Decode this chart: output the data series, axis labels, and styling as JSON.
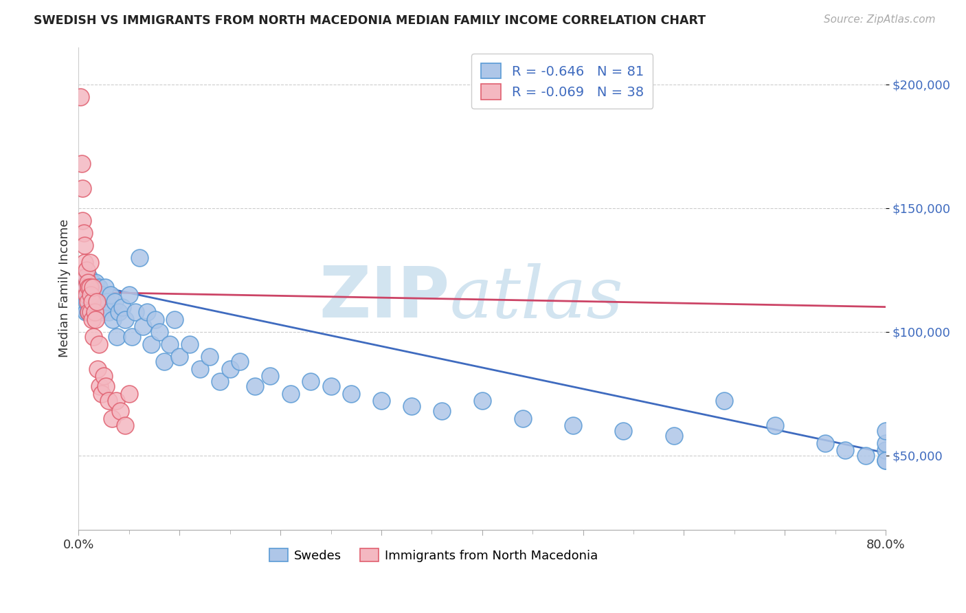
{
  "title": "SWEDISH VS IMMIGRANTS FROM NORTH MACEDONIA MEDIAN FAMILY INCOME CORRELATION CHART",
  "source": "Source: ZipAtlas.com",
  "ylabel": "Median Family Income",
  "xlim": [
    0.0,
    0.8
  ],
  "ylim": [
    20000,
    215000
  ],
  "yticks": [
    50000,
    100000,
    150000,
    200000
  ],
  "ytick_labels": [
    "$50,000",
    "$100,000",
    "$150,000",
    "$200,000"
  ],
  "xtick_vals": [
    0.0,
    0.1,
    0.2,
    0.3,
    0.4,
    0.5,
    0.6,
    0.7,
    0.8
  ],
  "xtick_minor": [
    0.05,
    0.15,
    0.25,
    0.35,
    0.45,
    0.55,
    0.65,
    0.75
  ],
  "xtick_labels": [
    "0.0%",
    "",
    "",
    "",
    "",
    "",
    "",
    "",
    "80.0%"
  ],
  "legend1_label": "R = -0.646   N = 81",
  "legend2_label": "R = -0.069   N = 38",
  "swedes_color": "#aec6e8",
  "swedes_edge_color": "#5b9bd5",
  "macedonia_color": "#f4b8c1",
  "macedonia_edge_color": "#e06070",
  "blue_line_color": "#3f6bbf",
  "pink_line_color": "#cc4466",
  "watermark_color": "#d2e4f0",
  "background_color": "#ffffff",
  "swedes_x": [
    0.003,
    0.005,
    0.006,
    0.007,
    0.008,
    0.008,
    0.009,
    0.009,
    0.01,
    0.01,
    0.011,
    0.011,
    0.012,
    0.012,
    0.013,
    0.013,
    0.014,
    0.015,
    0.015,
    0.016,
    0.017,
    0.018,
    0.019,
    0.02,
    0.021,
    0.022,
    0.023,
    0.025,
    0.026,
    0.028,
    0.03,
    0.032,
    0.034,
    0.036,
    0.038,
    0.04,
    0.043,
    0.046,
    0.05,
    0.053,
    0.056,
    0.06,
    0.064,
    0.068,
    0.072,
    0.076,
    0.08,
    0.085,
    0.09,
    0.095,
    0.1,
    0.11,
    0.12,
    0.13,
    0.14,
    0.15,
    0.16,
    0.175,
    0.19,
    0.21,
    0.23,
    0.25,
    0.27,
    0.3,
    0.33,
    0.36,
    0.4,
    0.44,
    0.49,
    0.54,
    0.59,
    0.64,
    0.69,
    0.74,
    0.76,
    0.78,
    0.8,
    0.8,
    0.8,
    0.8,
    0.8
  ],
  "swedes_y": [
    115000,
    122000,
    118000,
    108000,
    120000,
    112000,
    118000,
    108000,
    122000,
    115000,
    118000,
    110000,
    115000,
    108000,
    120000,
    112000,
    118000,
    115000,
    108000,
    112000,
    120000,
    115000,
    108000,
    118000,
    112000,
    108000,
    115000,
    110000,
    118000,
    112000,
    108000,
    115000,
    105000,
    112000,
    98000,
    108000,
    110000,
    105000,
    115000,
    98000,
    108000,
    130000,
    102000,
    108000,
    95000,
    105000,
    100000,
    88000,
    95000,
    105000,
    90000,
    95000,
    85000,
    90000,
    80000,
    85000,
    88000,
    78000,
    82000,
    75000,
    80000,
    78000,
    75000,
    72000,
    70000,
    68000,
    72000,
    65000,
    62000,
    60000,
    58000,
    72000,
    62000,
    55000,
    52000,
    50000,
    48000,
    52000,
    55000,
    60000,
    48000
  ],
  "mac_x": [
    0.002,
    0.003,
    0.004,
    0.004,
    0.005,
    0.006,
    0.006,
    0.007,
    0.007,
    0.008,
    0.008,
    0.009,
    0.009,
    0.01,
    0.01,
    0.011,
    0.011,
    0.012,
    0.012,
    0.013,
    0.013,
    0.014,
    0.015,
    0.016,
    0.017,
    0.018,
    0.019,
    0.02,
    0.021,
    0.023,
    0.025,
    0.027,
    0.03,
    0.033,
    0.037,
    0.041,
    0.046,
    0.05
  ],
  "mac_y": [
    195000,
    168000,
    158000,
    145000,
    140000,
    135000,
    128000,
    122000,
    118000,
    125000,
    115000,
    120000,
    112000,
    118000,
    108000,
    128000,
    118000,
    108000,
    115000,
    105000,
    112000,
    118000,
    98000,
    108000,
    105000,
    112000,
    85000,
    95000,
    78000,
    75000,
    82000,
    78000,
    72000,
    65000,
    72000,
    68000,
    62000,
    75000
  ]
}
